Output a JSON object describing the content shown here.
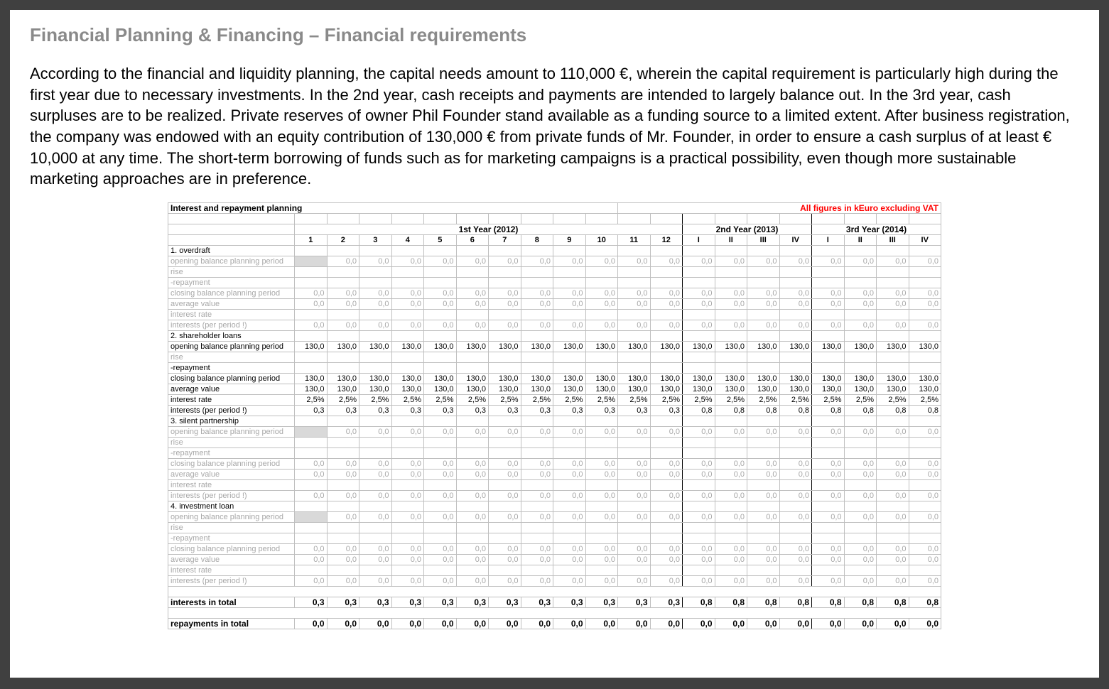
{
  "heading": "Financial Planning & Financing – Financial requirements",
  "body_text": "According to the financial and liquidity planning, the capital needs amount to 110,000 €, wherein the capital requirement is particularly high during the first year due to necessary investments. In the 2nd year, cash receipts and payments are intended to largely balance out. In the 3rd year, cash surpluses are to be realized. Private reserves of owner Phil Founder stand available as a funding source to a limited extent. After business registration, the company was endowed with an equity contribution of 130,000 € from private funds of Mr. Founder, in order to ensure a cash surplus of at least € 10,000 at any time. The short-term borrowing of funds such as for marketing campaigns is a practical possibility, even though more sustainable marketing approaches are in preference.",
  "table_title": "Interest and repayment planning",
  "table_subtitle": "All figures in kEuro excluding VAT",
  "colors": {
    "page_bg": "#ffffff",
    "outer_bg": "#404040",
    "heading": "#8a8a8a",
    "text": "#000000",
    "grey_text": "#a8a8a8",
    "sub_red": "#ff0000",
    "grid": "#bfbfbf",
    "shade": "#efefef",
    "shade_dark": "#d9d9d9"
  },
  "years": [
    {
      "label": "1st Year (2012)",
      "span": 12,
      "periods": [
        "1",
        "2",
        "3",
        "4",
        "5",
        "6",
        "7",
        "8",
        "9",
        "10",
        "11",
        "12"
      ]
    },
    {
      "label": "2nd Year (2013)",
      "span": 4,
      "periods": [
        "I",
        "II",
        "III",
        "IV"
      ]
    },
    {
      "label": "3rd Year (2014)",
      "span": 4,
      "periods": [
        "I",
        "II",
        "III",
        "IV"
      ]
    }
  ],
  "sections": [
    {
      "header": "1. overdraft",
      "rows": [
        {
          "label": "opening balance planning period",
          "grey": true,
          "first_blank": true,
          "vals": [
            "",
            "0,0",
            "0,0",
            "0,0",
            "0,0",
            "0,0",
            "0,0",
            "0,0",
            "0,0",
            "0,0",
            "0,0",
            "0,0",
            "0,0",
            "0,0",
            "0,0",
            "0,0",
            "0,0",
            "0,0",
            "0,0",
            "0,0"
          ]
        },
        {
          "label": "rise",
          "grey": true,
          "vals": [
            "",
            "",
            "",
            "",
            "",
            "",
            "",
            "",
            "",
            "",
            "",
            "",
            "",
            "",
            "",
            "",
            "",
            "",
            "",
            ""
          ]
        },
        {
          "label": "-repayment",
          "grey": true,
          "vals": [
            "",
            "",
            "",
            "",
            "",
            "",
            "",
            "",
            "",
            "",
            "",
            "",
            "",
            "",
            "",
            "",
            "",
            "",
            "",
            ""
          ]
        },
        {
          "label": "closing balance planning period",
          "grey": true,
          "vals": [
            "0,0",
            "0,0",
            "0,0",
            "0,0",
            "0,0",
            "0,0",
            "0,0",
            "0,0",
            "0,0",
            "0,0",
            "0,0",
            "0,0",
            "0,0",
            "0,0",
            "0,0",
            "0,0",
            "0,0",
            "0,0",
            "0,0",
            "0,0"
          ]
        },
        {
          "label": "average value",
          "grey": true,
          "vals": [
            "0,0",
            "0,0",
            "0,0",
            "0,0",
            "0,0",
            "0,0",
            "0,0",
            "0,0",
            "0,0",
            "0,0",
            "0,0",
            "0,0",
            "0,0",
            "0,0",
            "0,0",
            "0,0",
            "0,0",
            "0,0",
            "0,0",
            "0,0"
          ]
        },
        {
          "label": "interest rate",
          "grey": true,
          "vals": [
            "",
            "",
            "",
            "",
            "",
            "",
            "",
            "",
            "",
            "",
            "",
            "",
            "",
            "",
            "",
            "",
            "",
            "",
            "",
            ""
          ]
        },
        {
          "label": "interests (per period !)",
          "grey": true,
          "vals": [
            "0,0",
            "0,0",
            "0,0",
            "0,0",
            "0,0",
            "0,0",
            "0,0",
            "0,0",
            "0,0",
            "0,0",
            "0,0",
            "0,0",
            "0,0",
            "0,0",
            "0,0",
            "0,0",
            "0,0",
            "0,0",
            "0,0",
            "0,0"
          ]
        }
      ]
    },
    {
      "header": "2. shareholder loans",
      "rows": [
        {
          "label": "opening balance planning period",
          "grey": false,
          "vals": [
            "130,0",
            "130,0",
            "130,0",
            "130,0",
            "130,0",
            "130,0",
            "130,0",
            "130,0",
            "130,0",
            "130,0",
            "130,0",
            "130,0",
            "130,0",
            "130,0",
            "130,0",
            "130,0",
            "130,0",
            "130,0",
            "130,0",
            "130,0"
          ]
        },
        {
          "label": "rise",
          "grey": true,
          "vals": [
            "",
            "",
            "",
            "",
            "",
            "",
            "",
            "",
            "",
            "",
            "",
            "",
            "",
            "",
            "",
            "",
            "",
            "",
            "",
            ""
          ]
        },
        {
          "label": "-repayment",
          "grey": false,
          "vals": [
            "",
            "",
            "",
            "",
            "",
            "",
            "",
            "",
            "",
            "",
            "",
            "",
            "",
            "",
            "",
            "",
            "",
            "",
            "",
            ""
          ]
        },
        {
          "label": "closing balance planning period",
          "grey": false,
          "vals": [
            "130,0",
            "130,0",
            "130,0",
            "130,0",
            "130,0",
            "130,0",
            "130,0",
            "130,0",
            "130,0",
            "130,0",
            "130,0",
            "130,0",
            "130,0",
            "130,0",
            "130,0",
            "130,0",
            "130,0",
            "130,0",
            "130,0",
            "130,0"
          ]
        },
        {
          "label": "average value",
          "grey": false,
          "vals": [
            "130,0",
            "130,0",
            "130,0",
            "130,0",
            "130,0",
            "130,0",
            "130,0",
            "130,0",
            "130,0",
            "130,0",
            "130,0",
            "130,0",
            "130,0",
            "130,0",
            "130,0",
            "130,0",
            "130,0",
            "130,0",
            "130,0",
            "130,0"
          ]
        },
        {
          "label": "interest rate",
          "grey": false,
          "vals": [
            "2,5%",
            "2,5%",
            "2,5%",
            "2,5%",
            "2,5%",
            "2,5%",
            "2,5%",
            "2,5%",
            "2,5%",
            "2,5%",
            "2,5%",
            "2,5%",
            "2,5%",
            "2,5%",
            "2,5%",
            "2,5%",
            "2,5%",
            "2,5%",
            "2,5%",
            "2,5%"
          ]
        },
        {
          "label": "interests (per period !)",
          "grey": false,
          "vals": [
            "0,3",
            "0,3",
            "0,3",
            "0,3",
            "0,3",
            "0,3",
            "0,3",
            "0,3",
            "0,3",
            "0,3",
            "0,3",
            "0,3",
            "0,8",
            "0,8",
            "0,8",
            "0,8",
            "0,8",
            "0,8",
            "0,8",
            "0,8"
          ]
        }
      ]
    },
    {
      "header": "3. silent partnership",
      "rows": [
        {
          "label": "opening balance planning period",
          "grey": true,
          "first_blank": true,
          "vals": [
            "",
            "0,0",
            "0,0",
            "0,0",
            "0,0",
            "0,0",
            "0,0",
            "0,0",
            "0,0",
            "0,0",
            "0,0",
            "0,0",
            "0,0",
            "0,0",
            "0,0",
            "0,0",
            "0,0",
            "0,0",
            "0,0",
            "0,0"
          ]
        },
        {
          "label": "rise",
          "grey": true,
          "vals": [
            "",
            "",
            "",
            "",
            "",
            "",
            "",
            "",
            "",
            "",
            "",
            "",
            "",
            "",
            "",
            "",
            "",
            "",
            "",
            ""
          ]
        },
        {
          "label": "-repayment",
          "grey": true,
          "vals": [
            "",
            "",
            "",
            "",
            "",
            "",
            "",
            "",
            "",
            "",
            "",
            "",
            "",
            "",
            "",
            "",
            "",
            "",
            "",
            ""
          ]
        },
        {
          "label": "closing balance planning period",
          "grey": true,
          "vals": [
            "0,0",
            "0,0",
            "0,0",
            "0,0",
            "0,0",
            "0,0",
            "0,0",
            "0,0",
            "0,0",
            "0,0",
            "0,0",
            "0,0",
            "0,0",
            "0,0",
            "0,0",
            "0,0",
            "0,0",
            "0,0",
            "0,0",
            "0,0"
          ]
        },
        {
          "label": "average value",
          "grey": true,
          "vals": [
            "0,0",
            "0,0",
            "0,0",
            "0,0",
            "0,0",
            "0,0",
            "0,0",
            "0,0",
            "0,0",
            "0,0",
            "0,0",
            "0,0",
            "0,0",
            "0,0",
            "0,0",
            "0,0",
            "0,0",
            "0,0",
            "0,0",
            "0,0"
          ]
        },
        {
          "label": "interest rate",
          "grey": true,
          "vals": [
            "",
            "",
            "",
            "",
            "",
            "",
            "",
            "",
            "",
            "",
            "",
            "",
            "",
            "",
            "",
            "",
            "",
            "",
            "",
            ""
          ]
        },
        {
          "label": "interests (per period !)",
          "grey": true,
          "vals": [
            "0,0",
            "0,0",
            "0,0",
            "0,0",
            "0,0",
            "0,0",
            "0,0",
            "0,0",
            "0,0",
            "0,0",
            "0,0",
            "0,0",
            "0,0",
            "0,0",
            "0,0",
            "0,0",
            "0,0",
            "0,0",
            "0,0",
            "0,0"
          ]
        }
      ]
    },
    {
      "header": "4. investment loan",
      "rows": [
        {
          "label": "opening balance planning period",
          "grey": true,
          "first_blank": true,
          "vals": [
            "",
            "0,0",
            "0,0",
            "0,0",
            "0,0",
            "0,0",
            "0,0",
            "0,0",
            "0,0",
            "0,0",
            "0,0",
            "0,0",
            "0,0",
            "0,0",
            "0,0",
            "0,0",
            "0,0",
            "0,0",
            "0,0",
            "0,0"
          ]
        },
        {
          "label": "rise",
          "grey": true,
          "vals": [
            "",
            "",
            "",
            "",
            "",
            "",
            "",
            "",
            "",
            "",
            "",
            "",
            "",
            "",
            "",
            "",
            "",
            "",
            "",
            ""
          ]
        },
        {
          "label": "-repayment",
          "grey": true,
          "vals": [
            "",
            "",
            "",
            "",
            "",
            "",
            "",
            "",
            "",
            "",
            "",
            "",
            "",
            "",
            "",
            "",
            "",
            "",
            "",
            ""
          ]
        },
        {
          "label": "closing balance planning period",
          "grey": true,
          "vals": [
            "0,0",
            "0,0",
            "0,0",
            "0,0",
            "0,0",
            "0,0",
            "0,0",
            "0,0",
            "0,0",
            "0,0",
            "0,0",
            "0,0",
            "0,0",
            "0,0",
            "0,0",
            "0,0",
            "0,0",
            "0,0",
            "0,0",
            "0,0"
          ]
        },
        {
          "label": "average value",
          "grey": true,
          "vals": [
            "0,0",
            "0,0",
            "0,0",
            "0,0",
            "0,0",
            "0,0",
            "0,0",
            "0,0",
            "0,0",
            "0,0",
            "0,0",
            "0,0",
            "0,0",
            "0,0",
            "0,0",
            "0,0",
            "0,0",
            "0,0",
            "0,0",
            "0,0"
          ]
        },
        {
          "label": "interest rate",
          "grey": true,
          "vals": [
            "",
            "",
            "",
            "",
            "",
            "",
            "",
            "",
            "",
            "",
            "",
            "",
            "",
            "",
            "",
            "",
            "",
            "",
            "",
            ""
          ]
        },
        {
          "label": "interests (per period !)",
          "grey": true,
          "vals": [
            "0,0",
            "0,0",
            "0,0",
            "0,0",
            "0,0",
            "0,0",
            "0,0",
            "0,0",
            "0,0",
            "0,0",
            "0,0",
            "0,0",
            "0,0",
            "0,0",
            "0,0",
            "0,0",
            "0,0",
            "0,0",
            "0,0",
            "0,0"
          ]
        }
      ]
    }
  ],
  "totals": [
    {
      "label": "interests in total",
      "vals": [
        "0,3",
        "0,3",
        "0,3",
        "0,3",
        "0,3",
        "0,3",
        "0,3",
        "0,3",
        "0,3",
        "0,3",
        "0,3",
        "0,3",
        "0,8",
        "0,8",
        "0,8",
        "0,8",
        "0,8",
        "0,8",
        "0,8",
        "0,8"
      ]
    },
    {
      "label": "repayments in total",
      "vals": [
        "0,0",
        "0,0",
        "0,0",
        "0,0",
        "0,0",
        "0,0",
        "0,0",
        "0,0",
        "0,0",
        "0,0",
        "0,0",
        "0,0",
        "0,0",
        "0,0",
        "0,0",
        "0,0",
        "0,0",
        "0,0",
        "0,0",
        "0,0"
      ]
    }
  ]
}
